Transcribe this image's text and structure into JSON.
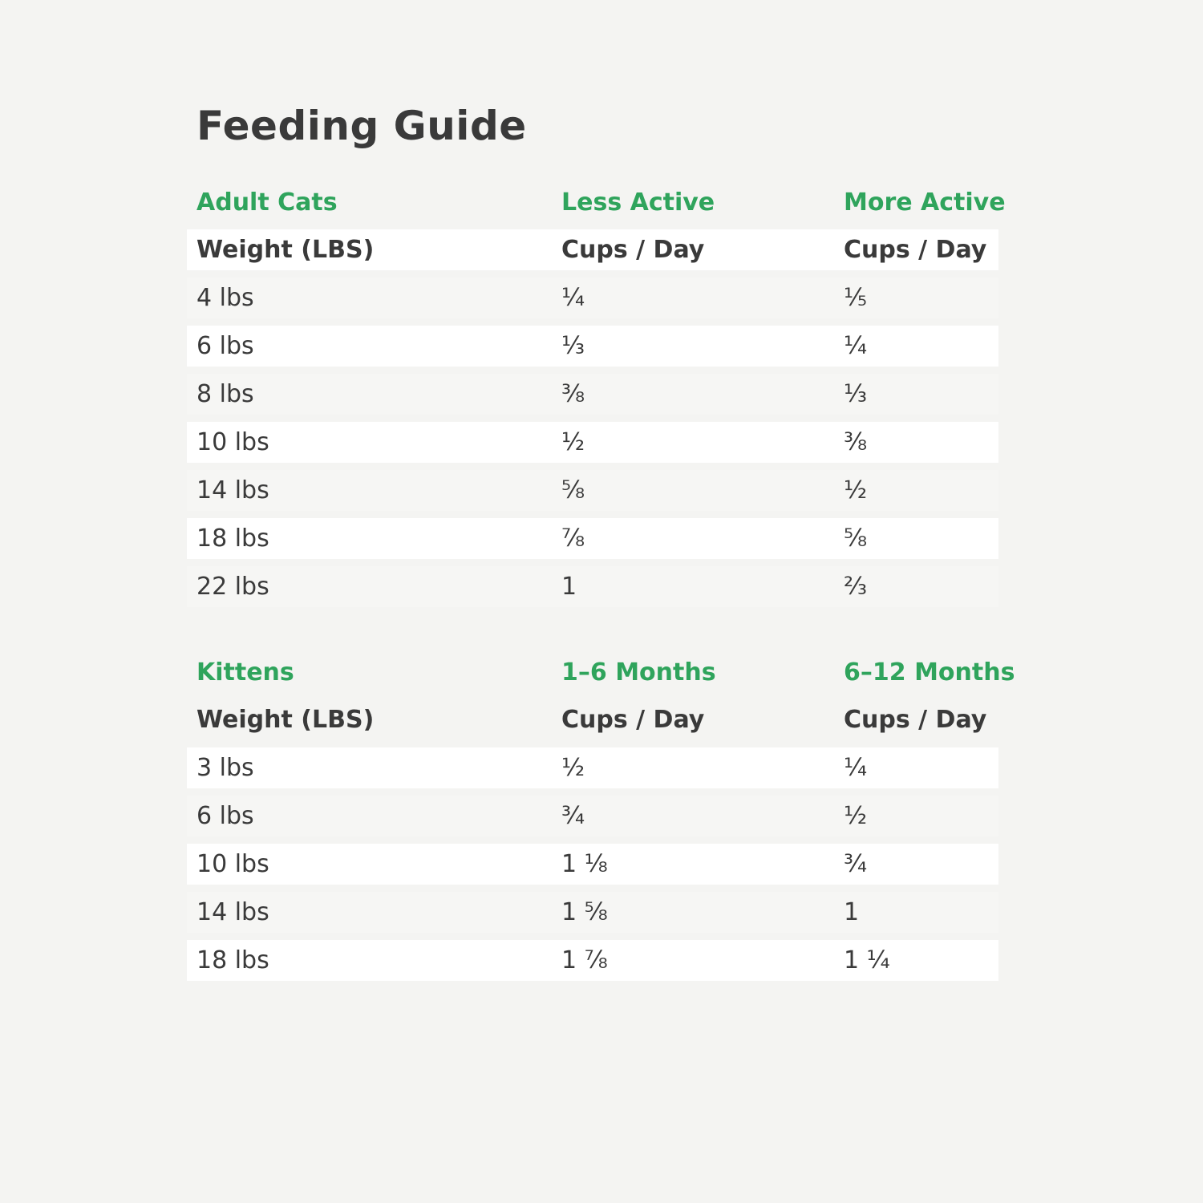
{
  "page": {
    "title": "Feeding Guide",
    "colors": {
      "bg": "#f4f4f2",
      "accent": "#2fa45c",
      "ink": "#3a3a3a",
      "row-white": "#ffffff",
      "stripe": "#f6f6f4"
    }
  },
  "tables": [
    {
      "section_label": "Adult Cats",
      "col2_label": "Less Active",
      "col3_label": "More Active",
      "header": [
        "Weight (LBS)",
        "Cups / Day",
        "Cups / Day"
      ],
      "rows": [
        [
          "4 lbs",
          "¼",
          "⅕"
        ],
        [
          "6 lbs",
          "⅓",
          "¼"
        ],
        [
          "8 lbs",
          "⅜",
          "⅓"
        ],
        [
          "10 lbs",
          "½",
          "⅜"
        ],
        [
          "14 lbs",
          "⅝",
          "½"
        ],
        [
          "18 lbs",
          "⅞",
          "⅝"
        ],
        [
          "22 lbs",
          "1",
          "⅔"
        ]
      ]
    },
    {
      "section_label": "Kittens",
      "col2_label": "1–6 Months",
      "col3_label": "6–12 Months",
      "header": [
        "Weight (LBS)",
        "Cups / Day",
        "Cups / Day"
      ],
      "rows": [
        [
          "3 lbs",
          "½",
          "¼"
        ],
        [
          "6 lbs",
          "¾",
          "½"
        ],
        [
          "10 lbs",
          "1 ⅛",
          "¾"
        ],
        [
          "14 lbs",
          "1 ⅝",
          "1"
        ],
        [
          "18 lbs",
          "1 ⅞",
          "1 ¼"
        ]
      ]
    }
  ]
}
